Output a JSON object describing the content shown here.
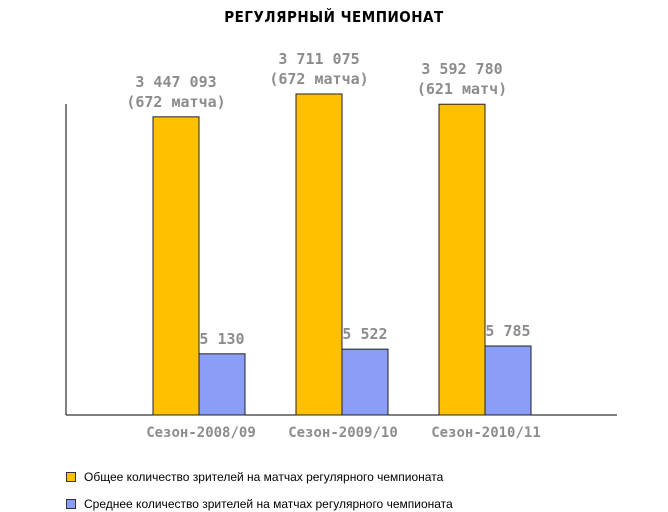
{
  "chart_data": {
    "type": "bar",
    "title": "РЕГУЛЯРНЫЙ ЧЕМПИОНАТ",
    "categories": [
      "Сезон-2008/09",
      "Сезон-2009/10",
      "Сезон-2010/11"
    ],
    "series": [
      {
        "name": "Общее количество зрителей на матчах регулярного чемпионата",
        "color": "#FFC000",
        "values": [
          3447093,
          3711075,
          3592780
        ],
        "labels": [
          [
            "3 447 093",
            "(672 матча)"
          ],
          [
            "3 711 075",
            "(672 матча)"
          ],
          [
            "3 592 780",
            "(621 матч)"
          ]
        ]
      },
      {
        "name": "Среднее количество зрителей на матчах регулярного чемпионата",
        "color": "#8A9EF7",
        "values": [
          5130,
          5522,
          5785
        ],
        "labels": [
          [
            "5 130"
          ],
          [
            "5 522"
          ],
          [
            "5 785"
          ]
        ]
      }
    ],
    "grid": false,
    "legend_position": "bottom-left",
    "label_color": "#8C8C8C"
  }
}
